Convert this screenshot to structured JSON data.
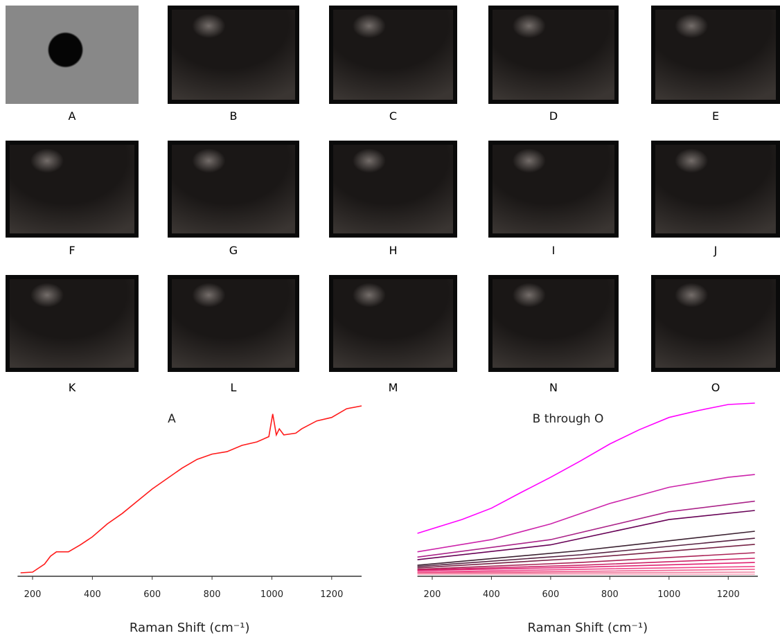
{
  "panels": [
    {
      "label": "A"
    },
    {
      "label": "B"
    },
    {
      "label": "C"
    },
    {
      "label": "D"
    },
    {
      "label": "E"
    },
    {
      "label": "F"
    },
    {
      "label": "G"
    },
    {
      "label": "H"
    },
    {
      "label": "I"
    },
    {
      "label": "J"
    },
    {
      "label": "K"
    },
    {
      "label": "L"
    },
    {
      "label": "M"
    },
    {
      "label": "N"
    },
    {
      "label": "O"
    }
  ],
  "chart_data": [
    {
      "type": "line",
      "title": "A",
      "x_label": "Raman Shift (cm⁻¹)",
      "xlim": [
        150,
        1300
      ],
      "ylim": [
        0,
        100
      ],
      "xticks": [
        200,
        400,
        600,
        800,
        1000,
        1200
      ],
      "series": [
        {
          "color": "#ff1a1a",
          "x": [
            160,
            200,
            240,
            260,
            280,
            320,
            360,
            400,
            450,
            500,
            550,
            600,
            650,
            700,
            750,
            800,
            850,
            900,
            950,
            990,
            1003,
            1015,
            1025,
            1040,
            1080,
            1100,
            1150,
            1200,
            1250,
            1300
          ],
          "values": [
            2,
            2.4,
            7,
            11.5,
            14,
            14,
            18,
            22.6,
            30,
            36,
            43,
            50,
            56,
            62,
            67,
            70,
            71.4,
            75,
            77,
            80,
            93,
            81,
            84.5,
            81,
            82,
            84.5,
            89,
            91,
            96,
            97.6
          ]
        }
      ]
    },
    {
      "type": "line",
      "title": "B through O",
      "x_label": "Raman Shift (cm⁻¹)",
      "xlim": [
        150,
        1300
      ],
      "ylim": [
        0,
        100
      ],
      "xticks": [
        200,
        400,
        600,
        800,
        1000,
        1200
      ],
      "series": [
        {
          "color": "#ff00ff",
          "x": [
            150,
            300,
            400,
            500,
            600,
            700,
            800,
            900,
            1000,
            1100,
            1200,
            1290
          ],
          "values": [
            24.6,
            32.5,
            39,
            48,
            56.7,
            66,
            75.8,
            84,
            91,
            95,
            98.4,
            99.2
          ]
        },
        {
          "color": "#cc22aa",
          "x": [
            150,
            400,
            600,
            800,
            1000,
            1200,
            1290
          ],
          "values": [
            14,
            21,
            30,
            41.7,
            51,
            56.7,
            58.3
          ]
        },
        {
          "color": "#aa2288",
          "x": [
            150,
            600,
            1000,
            1290
          ],
          "values": [
            11,
            21,
            37,
            43
          ]
        },
        {
          "color": "#660055",
          "x": [
            150,
            600,
            1000,
            1290
          ],
          "values": [
            9.5,
            18,
            32.5,
            37.7
          ]
        },
        {
          "color": "#3a2030",
          "x": [
            150,
            700,
            1290
          ],
          "values": [
            6.3,
            14.7,
            25.8
          ]
        },
        {
          "color": "#552040",
          "x": [
            150,
            700,
            1290
          ],
          "values": [
            5.6,
            12.3,
            21.8
          ]
        },
        {
          "color": "#772245",
          "x": [
            150,
            700,
            1290
          ],
          "values": [
            4.8,
            10.3,
            18.3
          ]
        },
        {
          "color": "#aa2255",
          "x": [
            150,
            700,
            1290
          ],
          "values": [
            4,
            7.9,
            13.5
          ]
        },
        {
          "color": "#cc2266",
          "x": [
            150,
            700,
            1290
          ],
          "values": [
            3.6,
            6.3,
            10.3
          ]
        },
        {
          "color": "#e02070",
          "x": [
            150,
            700,
            1290
          ],
          "values": [
            3.2,
            5.2,
            7.9
          ]
        },
        {
          "color": "#ee4488",
          "x": [
            150,
            700,
            1290
          ],
          "values": [
            2.4,
            4,
            5.6
          ]
        },
        {
          "color": "#f06090",
          "x": [
            150,
            700,
            1290
          ],
          "values": [
            2,
            2.8,
            4
          ]
        },
        {
          "color": "#f080a0",
          "x": [
            150,
            700,
            1290
          ],
          "values": [
            1.6,
            2,
            2.4
          ]
        },
        {
          "color": "#f8a0b8",
          "x": [
            150,
            700,
            1290
          ],
          "values": [
            1.2,
            1.2,
            1.2
          ]
        }
      ]
    }
  ]
}
